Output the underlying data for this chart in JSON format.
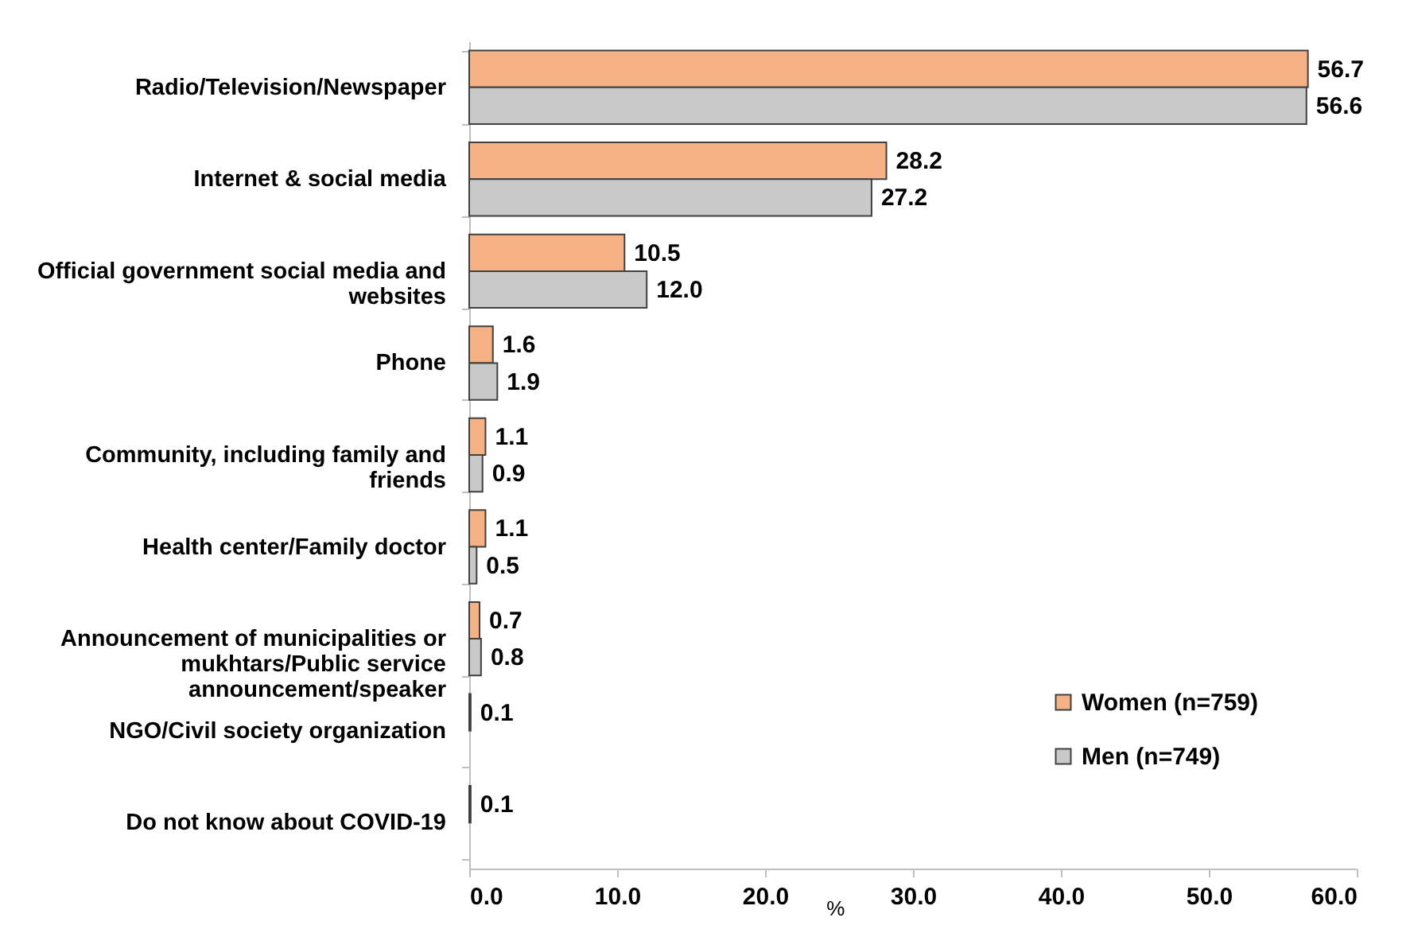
{
  "chart_data": {
    "type": "bar",
    "orientation": "horizontal",
    "xlabel": "%",
    "categories": [
      "Radio/Television/Newspaper",
      "Internet & social media",
      "Official government social media and websites",
      "Phone",
      "Community, including family and friends",
      "Health center/Family doctor",
      "Announcement of municipalities or mukhtars/Public service announcement/speaker",
      "NGO/Civil society organization",
      "Do not know about COVID-19"
    ],
    "series": [
      {
        "name": "Women (n=759)",
        "color": "#f4b183",
        "values": [
          56.7,
          28.2,
          10.5,
          1.6,
          1.1,
          1.1,
          0.7,
          0.1,
          0.1
        ],
        "value_labels": [
          "56.7",
          "28.2",
          "10.5",
          "1.6",
          "1.1",
          "1.1",
          "0.7",
          "0.1",
          "0.1"
        ]
      },
      {
        "name": "Men (n=749)",
        "color": "#c9c9c9",
        "values": [
          56.6,
          27.2,
          12.0,
          1.9,
          0.9,
          0.5,
          0.8,
          null,
          null
        ],
        "value_labels": [
          "56.6",
          "27.2",
          "12.0",
          "1.9",
          "0.9",
          "0.5",
          "0.8",
          null,
          null
        ]
      }
    ],
    "xlim": [
      0,
      60
    ],
    "xticks": [
      {
        "value": 0,
        "label": "0.0"
      },
      {
        "value": 10,
        "label": "10.0"
      },
      {
        "value": 20,
        "label": "20.0"
      },
      {
        "value": 30,
        "label": "30.0"
      },
      {
        "value": 40,
        "label": "40.0"
      },
      {
        "value": 50,
        "label": "50.0"
      },
      {
        "value": 60,
        "label": "60.0"
      }
    ],
    "legend": "bottom right"
  }
}
